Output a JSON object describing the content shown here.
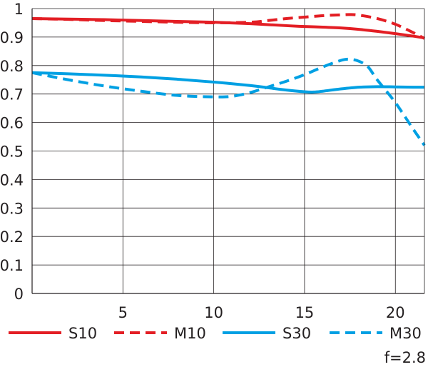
{
  "chart_data": {
    "type": "line",
    "xlim": [
      0,
      21.6
    ],
    "ylim": [
      0,
      1
    ],
    "x_ticks": [
      5,
      10,
      15,
      20
    ],
    "y_ticks": [
      0,
      0.1,
      0.2,
      0.3,
      0.4,
      0.5,
      0.6,
      0.7,
      0.8,
      0.9,
      1
    ],
    "x_tick_labels": [
      "5",
      "10",
      "15",
      "20"
    ],
    "y_tick_labels": [
      "0",
      "0.1",
      "0.2",
      "0.3",
      "0.4",
      "0.5",
      "0.6",
      "0.7",
      "0.8",
      "0.9",
      "1"
    ],
    "grid": true,
    "legend_position": "bottom",
    "annotation": "f=2.8",
    "series": [
      {
        "name": "S10",
        "color": "#e31e24",
        "dash": "solid",
        "x": [
          0,
          2,
          4,
          6,
          8,
          10,
          12,
          14,
          15,
          16,
          17,
          18,
          19,
          20,
          21,
          21.6
        ],
        "y": [
          0.965,
          0.963,
          0.961,
          0.958,
          0.955,
          0.952,
          0.947,
          0.94,
          0.937,
          0.935,
          0.932,
          0.927,
          0.92,
          0.912,
          0.903,
          0.897
        ]
      },
      {
        "name": "M10",
        "color": "#e31e24",
        "dash": "dashed",
        "x": [
          0,
          2,
          4,
          6,
          8,
          10,
          12,
          13,
          14,
          15,
          16,
          17,
          17.5,
          18,
          19,
          20,
          21,
          21.6
        ],
        "y": [
          0.965,
          0.962,
          0.958,
          0.955,
          0.952,
          0.95,
          0.952,
          0.958,
          0.965,
          0.97,
          0.975,
          0.978,
          0.979,
          0.977,
          0.965,
          0.945,
          0.915,
          0.895
        ]
      },
      {
        "name": "S30",
        "color": "#00a0e3",
        "dash": "solid",
        "x": [
          0,
          2,
          4,
          6,
          8,
          10,
          12,
          13,
          14,
          15,
          15.5,
          16,
          17,
          18,
          19,
          20,
          21,
          21.6
        ],
        "y": [
          0.775,
          0.771,
          0.766,
          0.76,
          0.752,
          0.742,
          0.73,
          0.722,
          0.714,
          0.708,
          0.707,
          0.71,
          0.718,
          0.724,
          0.726,
          0.725,
          0.724,
          0.724
        ]
      },
      {
        "name": "M30",
        "color": "#00a0e3",
        "dash": "dashed",
        "x": [
          0,
          2,
          4,
          6,
          8,
          10,
          11,
          12,
          13,
          14,
          15,
          16,
          17,
          17.5,
          18,
          18.5,
          19,
          20,
          21,
          21.6
        ],
        "y": [
          0.775,
          0.75,
          0.728,
          0.71,
          0.695,
          0.69,
          0.692,
          0.705,
          0.725,
          0.745,
          0.768,
          0.795,
          0.818,
          0.822,
          0.815,
          0.795,
          0.75,
          0.67,
          0.575,
          0.52
        ]
      }
    ]
  }
}
